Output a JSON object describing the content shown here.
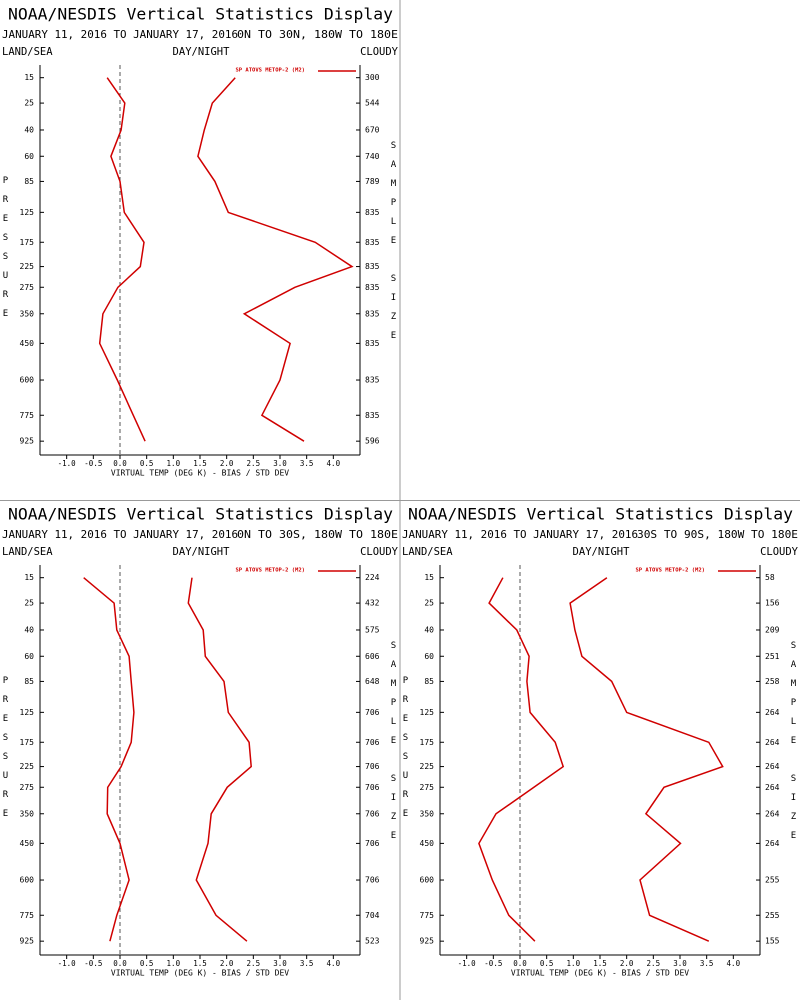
{
  "chart_data": [
    {
      "type": "line",
      "title": "NOAA/NESDIS Vertical Statistics Display",
      "subtitle": "JANUARY 11, 2016 TO JANUARY 17, 2016",
      "region": "0N TO 30N, 180W TO 180E",
      "land_sea": "LAND/SEA",
      "day_night": "DAY/NIGHT",
      "cloudy": "CLOUDY",
      "x_label": "VIRTUAL TEMP (DEG K) - BIAS / STD DEV",
      "y_label": "PRESSURE",
      "y2_label": "SAMPLE SIZE",
      "y": [
        15,
        25,
        40,
        60,
        85,
        125,
        175,
        225,
        275,
        350,
        450,
        600,
        775,
        925
      ],
      "series": [
        {
          "name": "SP ATOVS METOP-2 (M2)",
          "color": "#d00000",
          "bias": [
            -0.24,
            0.09,
            0.02,
            -0.17,
            0.0,
            0.08,
            0.45,
            0.38,
            -0.04,
            -0.32,
            -0.38,
            -0.05,
            0.25,
            0.47
          ],
          "std_dev": [
            2.16,
            1.73,
            1.58,
            1.46,
            1.78,
            2.03,
            3.66,
            4.35,
            3.28,
            2.33,
            3.19,
            3.0,
            2.66,
            3.45
          ]
        }
      ],
      "sample_size": [
        300,
        544,
        670,
        740,
        789,
        835,
        835,
        835,
        835,
        835,
        835,
        835,
        835,
        596
      ],
      "xlim": [
        -1.5,
        4.5
      ],
      "xticks": [
        {
          "value": -1,
          "label": "-1.0"
        },
        -0.5,
        {
          "value": 0,
          "label": "0.0"
        },
        0.5,
        {
          "value": 1,
          "label": "1.0"
        },
        1.5,
        {
          "value": 2,
          "label": "2.0"
        },
        2.5,
        {
          "value": 3,
          "label": "3.0"
        },
        3.5,
        {
          "value": 4,
          "label": "4.0"
        }
      ],
      "ylim": [
        10,
        1000
      ],
      "y_scale": "power",
      "y_exponent": 0.286
    },
    {
      "type": "line",
      "title": "NOAA/NESDIS Vertical Statistics Display",
      "subtitle": "JANUARY 11, 2016 TO JANUARY 17, 2016",
      "region": "0N TO 30S, 180W TO 180E",
      "land_sea": "LAND/SEA",
      "day_night": "DAY/NIGHT",
      "cloudy": "CLOUDY",
      "x_label": "VIRTUAL TEMP (DEG K) - BIAS / STD DEV",
      "y_label": "PRESSURE",
      "y2_label": "SAMPLE SIZE",
      "y": [
        15,
        25,
        40,
        60,
        85,
        125,
        175,
        225,
        275,
        350,
        450,
        600,
        775,
        925
      ],
      "series": [
        {
          "name": "SP ATOVS METOP-2 (M2)",
          "color": "#d00000",
          "bias": [
            -0.68,
            -0.11,
            -0.06,
            0.17,
            0.21,
            0.26,
            0.21,
            0.02,
            -0.23,
            -0.24,
            0.0,
            0.17,
            -0.06,
            -0.19
          ],
          "std_dev": [
            1.35,
            1.28,
            1.56,
            1.6,
            1.95,
            2.03,
            2.42,
            2.46,
            2.01,
            1.71,
            1.65,
            1.43,
            1.8,
            2.38
          ]
        }
      ],
      "sample_size": [
        224,
        432,
        575,
        606,
        648,
        706,
        706,
        706,
        706,
        706,
        706,
        706,
        704,
        523
      ],
      "xlim": [
        -1.5,
        4.5
      ],
      "xticks": [
        {
          "value": -1,
          "label": "-1.0"
        },
        -0.5,
        {
          "value": 0,
          "label": "0.0"
        },
        0.5,
        {
          "value": 1,
          "label": "1.0"
        },
        1.5,
        {
          "value": 2,
          "label": "2.0"
        },
        2.5,
        {
          "value": 3,
          "label": "3.0"
        },
        3.5,
        {
          "value": 4,
          "label": "4.0"
        }
      ],
      "ylim": [
        10,
        1000
      ],
      "y_scale": "power",
      "y_exponent": 0.286
    },
    {
      "type": "line",
      "title": "NOAA/NESDIS Vertical Statistics Display",
      "subtitle": "JANUARY 11, 2016 TO JANUARY 17, 2016",
      "region": "30S TO 90S, 180W TO 180E",
      "land_sea": "LAND/SEA",
      "day_night": "DAY/NIGHT",
      "cloudy": "CLOUDY",
      "x_label": "VIRTUAL TEMP (DEG K) - BIAS / STD DEV",
      "y_label": "PRESSURE",
      "y2_label": "SAMPLE SIZE",
      "y": [
        15,
        25,
        40,
        60,
        85,
        125,
        175,
        225,
        275,
        350,
        450,
        600,
        775,
        925
      ],
      "series": [
        {
          "name": "SP ATOVS METOP-2 (M2)",
          "color": "#d00000",
          "bias": [
            -0.32,
            -0.58,
            -0.06,
            0.17,
            0.13,
            0.19,
            0.66,
            0.81,
            0.26,
            -0.45,
            -0.77,
            -0.52,
            -0.21,
            0.28
          ],
          "std_dev": [
            1.63,
            0.94,
            1.03,
            1.16,
            1.72,
            2.0,
            3.54,
            3.8,
            2.7,
            2.36,
            3.01,
            2.25,
            2.43,
            3.54
          ]
        }
      ],
      "sample_size": [
        58,
        156,
        209,
        251,
        258,
        264,
        264,
        264,
        264,
        264,
        264,
        255,
        255,
        155
      ],
      "xlim": [
        -1.5,
        4.5
      ],
      "xticks": [
        {
          "value": -1,
          "label": "-1.0"
        },
        -0.5,
        {
          "value": 0,
          "label": "0.0"
        },
        0.5,
        {
          "value": 1,
          "label": "1.0"
        },
        1.5,
        {
          "value": 2,
          "label": "2.0"
        },
        2.5,
        {
          "value": 3,
          "label": "3.0"
        },
        3.5,
        {
          "value": 4,
          "label": "4.0"
        }
      ],
      "ylim": [
        10,
        1000
      ],
      "y_scale": "power",
      "y_exponent": 0.286
    }
  ]
}
